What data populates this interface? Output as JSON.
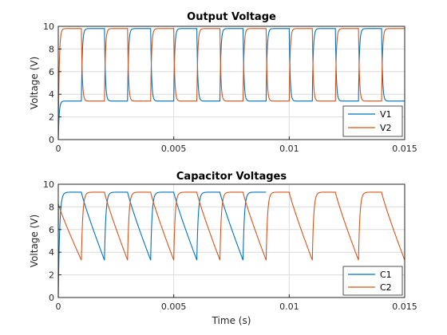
{
  "chart_data": [
    {
      "type": "line",
      "title": "Output Voltage",
      "xlabel": "",
      "ylabel": "Voltage (V)",
      "xlim": [
        0,
        0.015
      ],
      "ylim": [
        0,
        10
      ],
      "xticks": [
        0,
        0.005,
        0.01,
        0.015
      ],
      "xtick_labels": [
        "0",
        "0.005",
        "0.01",
        "0.015"
      ],
      "yticks": [
        0,
        2,
        4,
        6,
        8,
        10
      ],
      "ytick_labels": [
        "0",
        "2",
        "4",
        "6",
        "8",
        "10"
      ],
      "grid": true,
      "legend_position": "bottom-right",
      "waveform": "square",
      "period": 0.002,
      "high_level": 9.8,
      "low_level": 3.4,
      "series": [
        {
          "name": "V1",
          "color": "#0072BD",
          "phase": "low-first",
          "values_summary": "alternates 3.4 V and 9.8 V every 0.001 s, starting near 0"
        },
        {
          "name": "V2",
          "color": "#D95319",
          "phase": "high-first",
          "values_summary": "alternates 9.8 V and 3.4 V every 0.001 s, starting near 0"
        }
      ]
    },
    {
      "type": "line",
      "title": "Capacitor Voltages",
      "xlabel": "Time (s)",
      "ylabel": "Voltage (V)",
      "xlim": [
        0,
        0.015
      ],
      "ylim": [
        0,
        10
      ],
      "xticks": [
        0,
        0.005,
        0.01,
        0.015
      ],
      "xtick_labels": [
        "0",
        "0.005",
        "0.01",
        "0.015"
      ],
      "yticks": [
        0,
        2,
        4,
        6,
        8,
        10
      ],
      "ytick_labels": [
        "0",
        "2",
        "4",
        "6",
        "8",
        "10"
      ],
      "grid": true,
      "legend_position": "bottom-right",
      "waveform": "charge-discharge",
      "period": 0.002,
      "peak": 9.3,
      "trough": 3.3,
      "series": [
        {
          "name": "C1",
          "color": "#0072BD",
          "phase": "peak-first",
          "values_summary": "charges to 9.3 V then decays to 3.3 V, period 0.002 s"
        },
        {
          "name": "C2",
          "color": "#D95319",
          "phase": "decay-first",
          "values_summary": "starts ~8.3 V, decays to 3.3 V then recharges to 9.3 V, period 0.002 s"
        }
      ]
    }
  ]
}
